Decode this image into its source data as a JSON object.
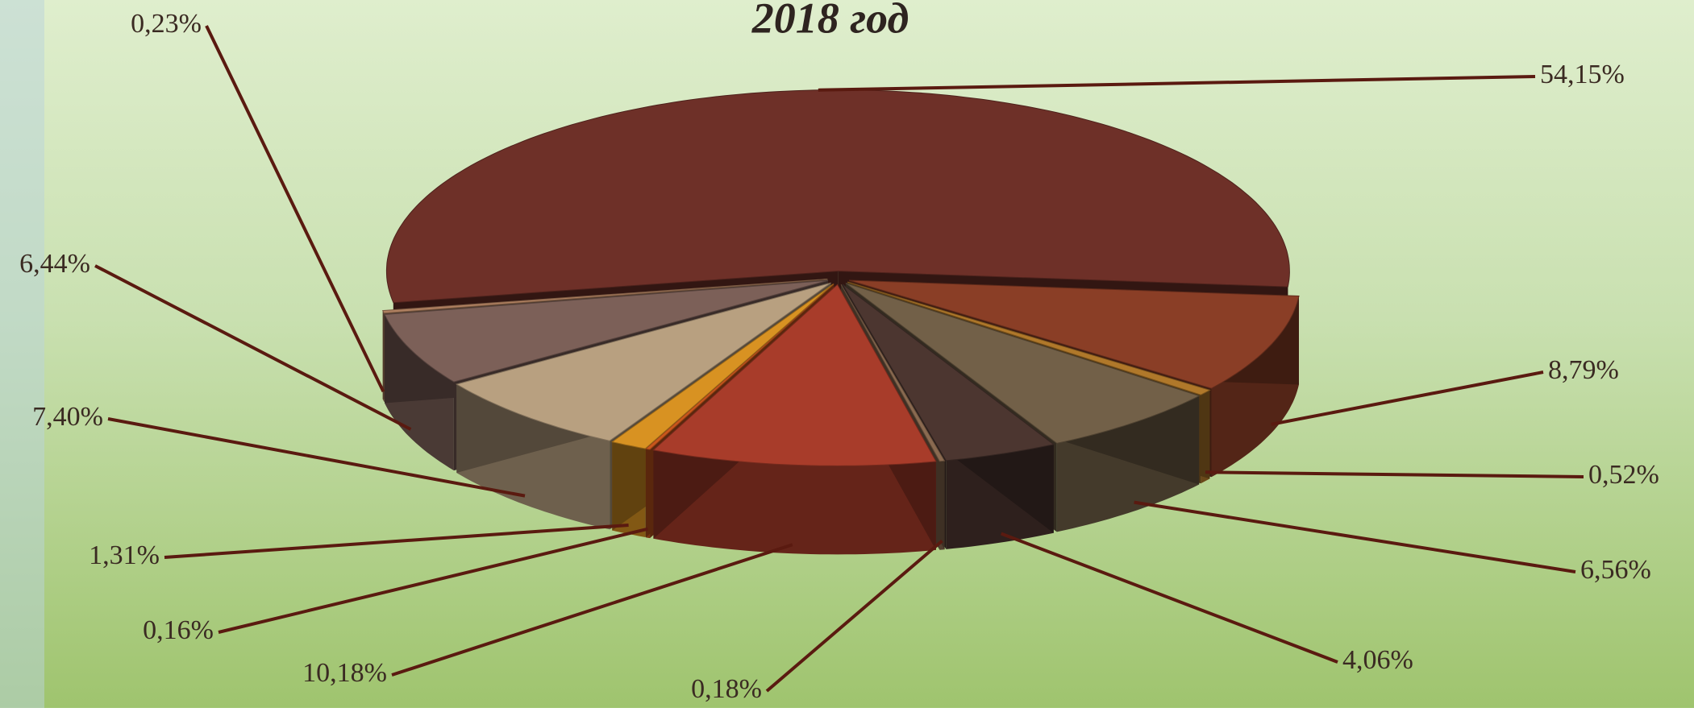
{
  "chart_data": {
    "type": "pie",
    "title": "2018 год",
    "values": [
      54.15,
      8.79,
      0.52,
      6.56,
      4.06,
      0.18,
      10.18,
      0.16,
      1.31,
      7.4,
      6.44,
      0.23
    ],
    "value_labels": [
      "54,15%",
      "8,79%",
      "0,52%",
      "6,56%",
      "4,06%",
      "0,18%",
      "10,18%",
      "0,16%",
      "1,31%",
      "7,40%",
      "6,44%",
      "0,23%"
    ],
    "colors": [
      "#6e3028",
      "#8a3e26",
      "#b0782a",
      "#726048",
      "#4c3630",
      "#8a6a50",
      "#a83c2a",
      "#c8561c",
      "#d89222",
      "#b8a080",
      "#7c6058",
      "#b08060"
    ]
  }
}
